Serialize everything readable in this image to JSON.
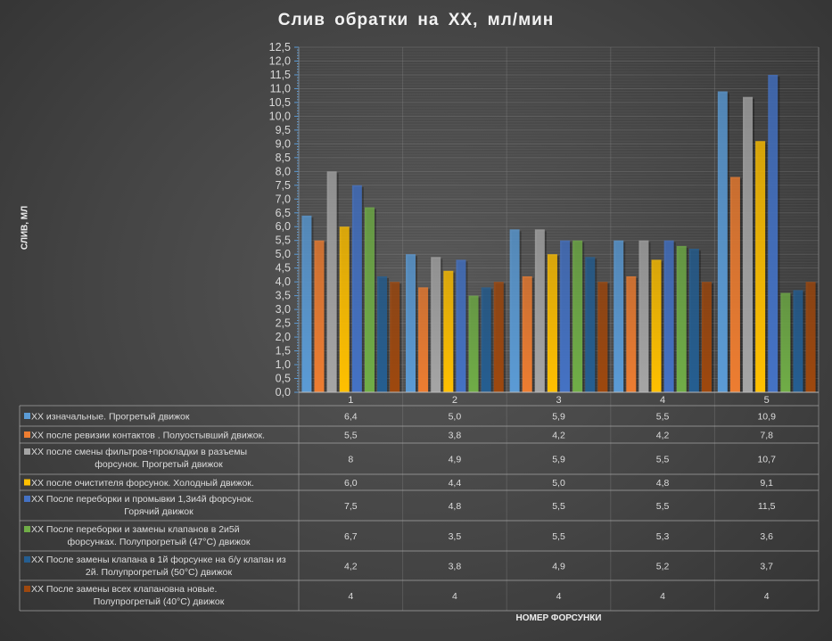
{
  "chart_data": {
    "type": "bar",
    "title": "Слив обратки  на ХХ, мл/мин",
    "xlabel": "НОМЕР ФОРСУНКИ",
    "ylabel": "СЛИВ, МЛ",
    "ylim": [
      0,
      12.5
    ],
    "ytick_step": 0.5,
    "grid": true,
    "legend": "data-table",
    "categories": [
      "1",
      "2",
      "3",
      "4",
      "5"
    ],
    "series": [
      {
        "name": "ХХ изначальные. Прогретый движок",
        "color": "#5b9bd5",
        "values": [
          6.4,
          5.0,
          5.9,
          5.5,
          10.9
        ],
        "labels": [
          "6,4",
          "5,0",
          "5,9",
          "5,5",
          "10,9"
        ]
      },
      {
        "name": "ХХ после ревизии контактов . Полуостывший движок.",
        "color": "#ed7d31",
        "values": [
          5.5,
          3.8,
          4.2,
          4.2,
          7.8
        ],
        "labels": [
          "5,5",
          "3,8",
          "4,2",
          "4,2",
          "7,8"
        ]
      },
      {
        "name": "ХХ после смены фильтров+прокладки в разъемы форсунок. Прогретый движок",
        "color": "#a5a5a5",
        "values": [
          8,
          4.9,
          5.9,
          5.5,
          10.7
        ],
        "labels": [
          "8",
          "4,9",
          "5,9",
          "5,5",
          "10,7"
        ]
      },
      {
        "name": "ХХ после очистителя форсунок. Холодный движок.",
        "color": "#ffc000",
        "values": [
          6.0,
          4.4,
          5.0,
          4.8,
          9.1
        ],
        "labels": [
          "6,0",
          "4,4",
          "5,0",
          "4,8",
          "9,1"
        ]
      },
      {
        "name": "ХХ После переборки и промывки 1,3и4й форсунок. Горячий движок",
        "color": "#4472c4",
        "values": [
          7.5,
          4.8,
          5.5,
          5.5,
          11.5
        ],
        "labels": [
          "7,5",
          "4,8",
          "5,5",
          "5,5",
          "11,5"
        ]
      },
      {
        "name": "ХХ После переборки и замены клапанов в 2и5й форсунках. Полупрогретый (47°С) движок",
        "color": "#70ad47",
        "values": [
          6.7,
          3.5,
          5.5,
          5.3,
          3.6
        ],
        "labels": [
          "6,7",
          "3,5",
          "5,5",
          "5,3",
          "3,6"
        ]
      },
      {
        "name": "ХХ После замены клапана в 1й форсунке на б/у клапан из 2й. Полупрогретый (50°С) движок",
        "color": "#255e91",
        "values": [
          4.2,
          3.8,
          4.9,
          5.2,
          3.7
        ],
        "labels": [
          "4,2",
          "3,8",
          "4,9",
          "5,2",
          "3,7"
        ]
      },
      {
        "name": "ХХ После замены всех клапановна новые. Полупрогретый (40°С) движок",
        "color": "#9e480e",
        "values": [
          4,
          4,
          4,
          4,
          4
        ],
        "labels": [
          "4",
          "4",
          "4",
          "4",
          "4"
        ]
      }
    ]
  }
}
